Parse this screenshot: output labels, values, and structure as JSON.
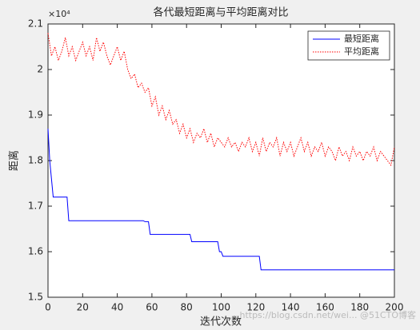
{
  "chart_data": {
    "type": "line",
    "title": "各代最短距离与平均距离对比",
    "x_label": "迭代次数",
    "y_label": "距离",
    "y_multiplier": "×10⁴",
    "watermark": "https://blog.csdn.net/wei... @51CTO博客",
    "xlim": [
      0,
      200
    ],
    "xticks": [
      0,
      20,
      40,
      60,
      80,
      100,
      120,
      140,
      160,
      180,
      200
    ],
    "ylim": [
      1.5,
      2.1
    ],
    "yticks": [
      1.5,
      1.6,
      1.7,
      1.8,
      1.9,
      2,
      2.1
    ],
    "legend": "top-right",
    "series": [
      {
        "name": "最短距离",
        "color": "#0000ff",
        "dash": "solid",
        "x": [
          0,
          1,
          2,
          3,
          11,
          12,
          55,
          56,
          58,
          59,
          82,
          83,
          98,
          99,
          100,
          101,
          102,
          122,
          123,
          200
        ],
        "values": [
          1.87,
          1.8,
          1.76,
          1.72,
          1.72,
          1.668,
          1.668,
          1.666,
          1.666,
          1.638,
          1.638,
          1.622,
          1.622,
          1.6,
          1.6,
          1.59,
          1.59,
          1.59,
          1.56,
          1.56
        ]
      },
      {
        "name": "平均距离",
        "color": "#ff0000",
        "dash": "dotted",
        "x": [
          0,
          2,
          4,
          6,
          8,
          10,
          12,
          14,
          16,
          18,
          20,
          22,
          24,
          26,
          28,
          30,
          32,
          34,
          36,
          38,
          40,
          42,
          44,
          46,
          48,
          50,
          52,
          54,
          56,
          58,
          60,
          62,
          64,
          66,
          68,
          70,
          72,
          74,
          76,
          78,
          80,
          82,
          84,
          86,
          88,
          90,
          92,
          94,
          96,
          98,
          100,
          102,
          104,
          106,
          108,
          110,
          112,
          114,
          116,
          118,
          120,
          122,
          124,
          126,
          128,
          130,
          132,
          134,
          136,
          138,
          140,
          142,
          144,
          146,
          148,
          150,
          152,
          154,
          156,
          158,
          160,
          162,
          164,
          166,
          168,
          170,
          172,
          174,
          176,
          178,
          180,
          182,
          184,
          186,
          188,
          190,
          192,
          194,
          196,
          198,
          200
        ],
        "values": [
          2.08,
          2.03,
          2.05,
          2.02,
          2.04,
          2.07,
          2.03,
          2.05,
          2.02,
          2.04,
          2.06,
          2.03,
          2.05,
          2.02,
          2.07,
          2.04,
          2.06,
          2.03,
          2.01,
          2.03,
          2.05,
          2.02,
          2.04,
          2.0,
          1.98,
          1.99,
          1.96,
          1.97,
          1.95,
          1.96,
          1.92,
          1.94,
          1.9,
          1.92,
          1.89,
          1.91,
          1.88,
          1.89,
          1.86,
          1.88,
          1.85,
          1.87,
          1.84,
          1.86,
          1.85,
          1.87,
          1.84,
          1.86,
          1.83,
          1.85,
          1.84,
          1.83,
          1.85,
          1.83,
          1.84,
          1.82,
          1.84,
          1.83,
          1.85,
          1.82,
          1.84,
          1.81,
          1.85,
          1.82,
          1.84,
          1.83,
          1.85,
          1.81,
          1.84,
          1.82,
          1.84,
          1.81,
          1.83,
          1.85,
          1.82,
          1.84,
          1.81,
          1.83,
          1.82,
          1.84,
          1.81,
          1.83,
          1.82,
          1.8,
          1.83,
          1.81,
          1.82,
          1.8,
          1.83,
          1.81,
          1.82,
          1.8,
          1.82,
          1.81,
          1.83,
          1.8,
          1.82,
          1.81,
          1.8,
          1.79,
          1.83
        ]
      }
    ]
  }
}
